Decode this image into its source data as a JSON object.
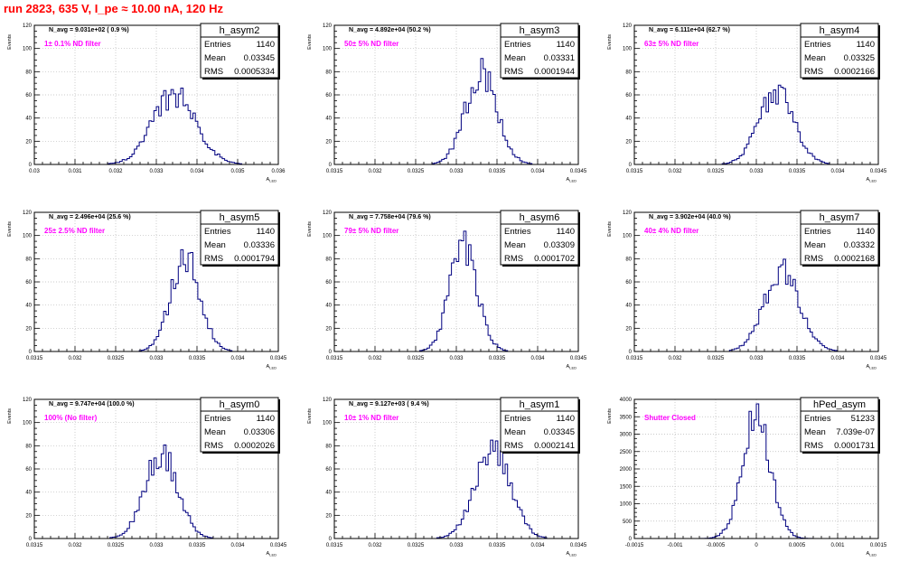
{
  "canvas": {
    "title": "run 2823,   635 V, I_pe ≈ 10.00 nA, 120 Hz",
    "title_color": "#ff0000",
    "hist_color": "#000080",
    "note_color": "#ff00ff",
    "stat_labels": {
      "entries": "Entries",
      "mean": "Mean",
      "rms": "RMS"
    }
  },
  "chart_data": [
    {
      "type": "bar",
      "name": "h_asym2",
      "ylabel": "Events",
      "xlabel": "A_LED",
      "xlim": [
        0.03,
        0.036
      ],
      "ylim": [
        0,
        120
      ],
      "grid": true,
      "legend": "top-right",
      "xticks": [
        0.03,
        0.031,
        0.032,
        0.033,
        0.034,
        0.035,
        0.036
      ],
      "xtick_labels": [
        "0.03",
        "0.031",
        "0.032",
        "0.033",
        "0.034",
        "0.035",
        "0.036"
      ],
      "yticks": [
        0,
        20,
        40,
        60,
        80,
        100,
        120
      ],
      "header": "N_avg = 9.031e+02 ( 0.9 %)",
      "note": "1± 0.1% ND filter",
      "stats": {
        "entries": "1140",
        "mean": "0.03345",
        "rms": "0.0005334"
      },
      "mean": 0.03345,
      "rms": 0.0005334,
      "entries": 1140,
      "peak": 60,
      "bins": 100
    },
    {
      "type": "bar",
      "name": "h_asym3",
      "ylabel": "Events",
      "xlabel": "A_LED",
      "xlim": [
        0.0315,
        0.0345
      ],
      "ylim": [
        0,
        120
      ],
      "grid": true,
      "legend": "top-right",
      "xticks": [
        0.0315,
        0.032,
        0.0325,
        0.033,
        0.0335,
        0.034,
        0.0345
      ],
      "xtick_labels": [
        "0.0315",
        "0.032",
        "0.0325",
        "0.033",
        "0.0335",
        "0.034",
        "0.0345"
      ],
      "yticks": [
        0,
        20,
        40,
        60,
        80,
        100,
        120
      ],
      "header": "N_avg = 4.892e+04 (50.2 %)",
      "note": "50± 5% ND filter",
      "stats": {
        "entries": "1140",
        "mean": "0.03331",
        "rms": "0.0001944"
      },
      "mean": 0.03331,
      "rms": 0.0001944,
      "entries": 1140,
      "peak": 80,
      "bins": 100
    },
    {
      "type": "bar",
      "name": "h_asym4",
      "ylabel": "Events",
      "xlabel": "A_LED",
      "xlim": [
        0.0315,
        0.0345
      ],
      "ylim": [
        0,
        120
      ],
      "grid": true,
      "legend": "top-right",
      "xticks": [
        0.0315,
        0.032,
        0.0325,
        0.033,
        0.0335,
        0.034,
        0.0345
      ],
      "xtick_labels": [
        "0.0315",
        "0.032",
        "0.0325",
        "0.033",
        "0.0335",
        "0.034",
        "0.0345"
      ],
      "yticks": [
        0,
        20,
        40,
        60,
        80,
        100,
        120
      ],
      "header": "N_avg = 6.111e+04 (62.7 %)",
      "note": "63± 5% ND filter",
      "stats": {
        "entries": "1140",
        "mean": "0.03325",
        "rms": "0.0002166"
      },
      "mean": 0.03325,
      "rms": 0.0002166,
      "entries": 1140,
      "peak": 62,
      "bins": 100
    },
    {
      "type": "bar",
      "name": "h_asym5",
      "ylabel": "Events",
      "xlabel": "A_LED",
      "xlim": [
        0.0315,
        0.0345
      ],
      "ylim": [
        0,
        120
      ],
      "grid": true,
      "legend": "top-right",
      "xticks": [
        0.0315,
        0.032,
        0.0325,
        0.033,
        0.0335,
        0.034,
        0.0345
      ],
      "xtick_labels": [
        "0.0315",
        "0.032",
        "0.0325",
        "0.033",
        "0.0335",
        "0.034",
        "0.0345"
      ],
      "yticks": [
        0,
        20,
        40,
        60,
        80,
        100,
        120
      ],
      "header": "N_avg = 2.496e+04 (25.6 %)",
      "note": "25± 2.5% ND filter",
      "stats": {
        "entries": "1140",
        "mean": "0.03336",
        "rms": "0.0001794"
      },
      "mean": 0.03336,
      "rms": 0.0001794,
      "entries": 1140,
      "peak": 82,
      "bins": 100
    },
    {
      "type": "bar",
      "name": "h_asym6",
      "ylabel": "Events",
      "xlabel": "A_LED",
      "xlim": [
        0.0315,
        0.0345
      ],
      "ylim": [
        0,
        120
      ],
      "grid": true,
      "legend": "top-right",
      "xticks": [
        0.0315,
        0.032,
        0.0325,
        0.033,
        0.0335,
        0.034,
        0.0345
      ],
      "xtick_labels": [
        "0.0315",
        "0.032",
        "0.0325",
        "0.033",
        "0.0335",
        "0.034",
        "0.0345"
      ],
      "yticks": [
        0,
        20,
        40,
        60,
        80,
        100,
        120
      ],
      "header": "N_avg = 7.758e+04 (79.6 %)",
      "note": "79± 5% ND filter",
      "stats": {
        "entries": "1140",
        "mean": "0.03309",
        "rms": "0.0001702"
      },
      "mean": 0.03309,
      "rms": 0.0001702,
      "entries": 1140,
      "peak": 90,
      "bins": 100
    },
    {
      "type": "bar",
      "name": "h_asym7",
      "ylabel": "Events",
      "xlabel": "A_LED",
      "xlim": [
        0.0315,
        0.0345
      ],
      "ylim": [
        0,
        120
      ],
      "grid": true,
      "legend": "top-right",
      "xticks": [
        0.0315,
        0.032,
        0.0325,
        0.033,
        0.0335,
        0.034,
        0.0345
      ],
      "xtick_labels": [
        "0.0315",
        "0.032",
        "0.0325",
        "0.033",
        "0.0335",
        "0.034",
        "0.0345"
      ],
      "yticks": [
        0,
        20,
        40,
        60,
        80,
        100,
        120
      ],
      "header": "N_avg = 3.902e+04 (40.0 %)",
      "note": "40± 4% ND filter",
      "stats": {
        "entries": "1140",
        "mean": "0.03332",
        "rms": "0.0002168"
      },
      "mean": 0.03332,
      "rms": 0.0002168,
      "entries": 1140,
      "peak": 70,
      "bins": 100
    },
    {
      "type": "bar",
      "name": "h_asym0",
      "ylabel": "Events",
      "xlabel": "A_LED",
      "xlim": [
        0.0315,
        0.0345
      ],
      "ylim": [
        0,
        120
      ],
      "grid": true,
      "legend": "top-right",
      "xticks": [
        0.0315,
        0.032,
        0.0325,
        0.033,
        0.0335,
        0.034,
        0.0345
      ],
      "xtick_labels": [
        "0.0315",
        "0.032",
        "0.0325",
        "0.033",
        "0.0335",
        "0.034",
        "0.0345"
      ],
      "yticks": [
        0,
        20,
        40,
        60,
        80,
        100,
        120
      ],
      "header": "N_avg = 9.747e+04 (100.0 %)",
      "note": "100% (No filter)",
      "stats": {
        "entries": "1140",
        "mean": "0.03306",
        "rms": "0.0002026"
      },
      "mean": 0.03306,
      "rms": 0.0002026,
      "entries": 1140,
      "peak": 72,
      "bins": 100
    },
    {
      "type": "bar",
      "name": "h_asym1",
      "ylabel": "Events",
      "xlabel": "A_LED",
      "xlim": [
        0.0315,
        0.0345
      ],
      "ylim": [
        0,
        120
      ],
      "grid": true,
      "legend": "top-right",
      "xticks": [
        0.0315,
        0.032,
        0.0325,
        0.033,
        0.0335,
        0.034,
        0.0345
      ],
      "xtick_labels": [
        "0.0315",
        "0.032",
        "0.0325",
        "0.033",
        "0.0335",
        "0.034",
        "0.0345"
      ],
      "yticks": [
        0,
        20,
        40,
        60,
        80,
        100,
        120
      ],
      "header": "N_avg = 9.127e+03 ( 9.4 %)",
      "note": "10± 1% ND filter",
      "stats": {
        "entries": "1140",
        "mean": "0.03345",
        "rms": "0.0002141"
      },
      "mean": 0.03345,
      "rms": 0.0002141,
      "entries": 1140,
      "peak": 78,
      "bins": 100
    },
    {
      "type": "bar",
      "name": "hPed_asym",
      "ylabel": "Events",
      "xlabel": "A_LED",
      "xlim": [
        -0.0015,
        0.0015
      ],
      "ylim": [
        0,
        4000
      ],
      "grid": true,
      "legend": "top-right",
      "xticks": [
        -0.0015,
        -0.001,
        -0.0005,
        0,
        0.0005,
        0.001,
        0.0015
      ],
      "xtick_labels": [
        "-0.0015",
        "-0.001",
        "-0.0005",
        "0",
        "0.0005",
        "0.001",
        "0.0015"
      ],
      "yticks": [
        0,
        500,
        1000,
        1500,
        2000,
        2500,
        3000,
        3500,
        4000
      ],
      "header": "",
      "note": "Shutter Closed",
      "stats": {
        "entries": "51233",
        "mean": "7.039e-07",
        "rms": "0.0001731"
      },
      "mean": 7.039e-07,
      "rms": 0.0001731,
      "entries": 51233,
      "peak": 3450,
      "bins": 100
    }
  ]
}
